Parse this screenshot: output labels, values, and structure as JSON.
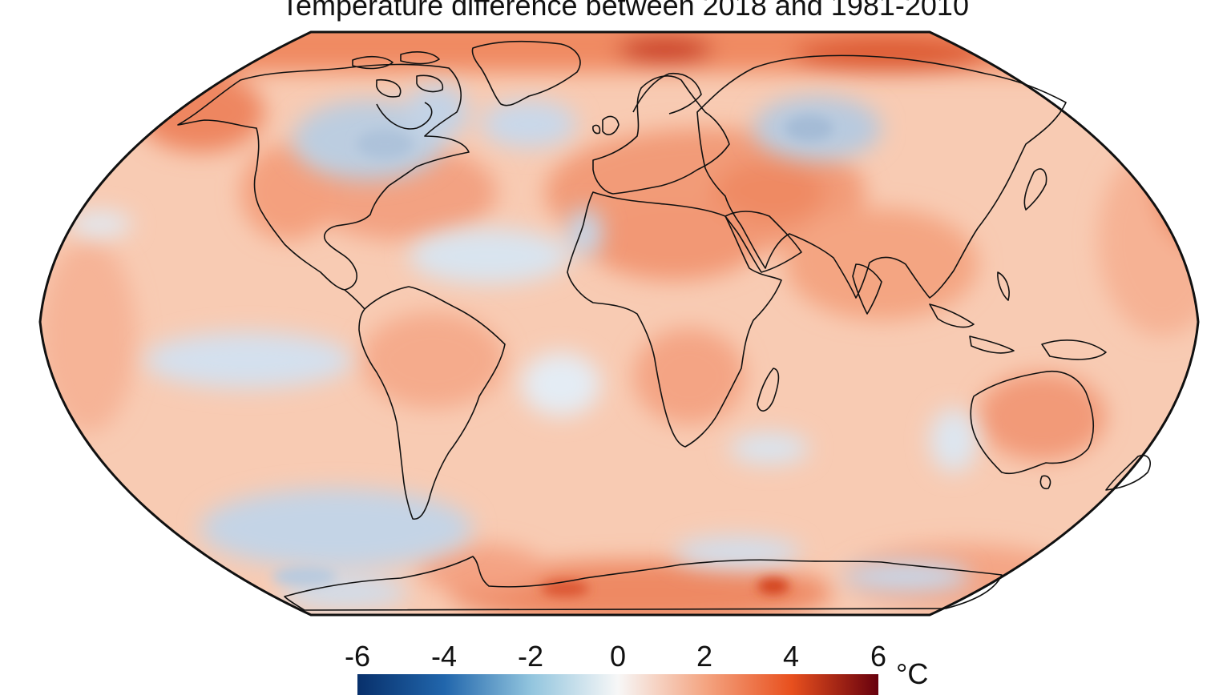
{
  "title": "Temperature difference between 2018 and 1981-2010",
  "colorbar": {
    "ticks": [
      "-6",
      "-4",
      "-2",
      "0",
      "2",
      "4",
      "6"
    ],
    "unit": "°C",
    "colors": [
      "#08306b",
      "#2166ac",
      "#92c5de",
      "#f7f7f7",
      "#f4a582",
      "#e8501e",
      "#67000d"
    ]
  },
  "map": {
    "projection": "Robinson",
    "ocean_base_color": "#f7c6ad",
    "land_base_color": "#f4a98a",
    "coastline_color": "#111111"
  }
}
